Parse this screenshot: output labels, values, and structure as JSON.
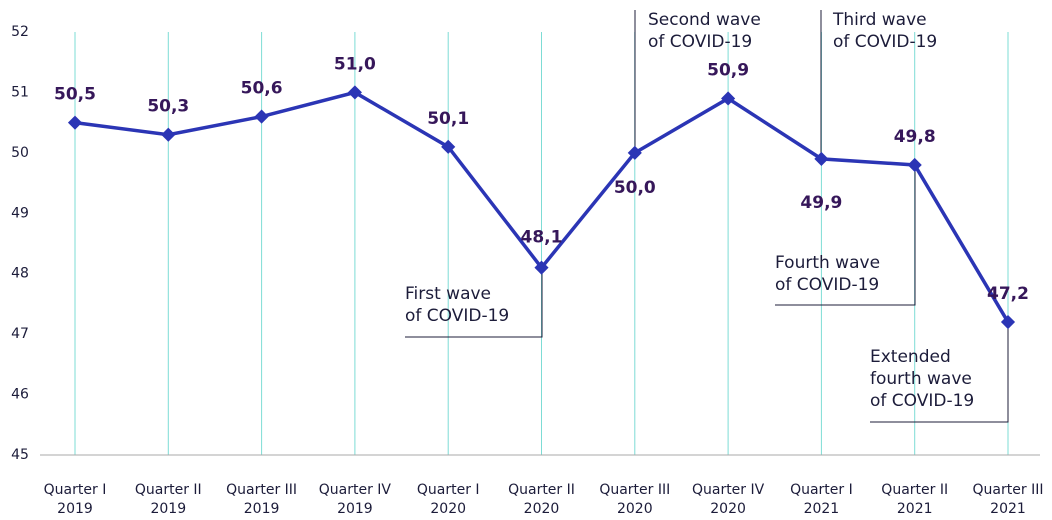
{
  "chart_data": {
    "type": "line",
    "categories": [
      "Quarter I\n2019",
      "Quarter II\n2019",
      "Quarter III\n2019",
      "Quarter IV\n2019",
      "Quarter I\n2020",
      "Quarter II\n2020",
      "Quarter III\n2020",
      "Quarter IV\n2020",
      "Quarter I\n2021",
      "Quarter II\n2021",
      "Quarter III\n2021"
    ],
    "series": [
      {
        "color": "#2b35b5",
        "values": [
          50.5,
          50.3,
          50.6,
          51.0,
          50.1,
          48.1,
          50.0,
          50.9,
          49.9,
          49.8,
          47.2
        ],
        "value_labels": [
          "50,5",
          "50,3",
          "50,6",
          "51,0",
          "50,1",
          "48,1",
          "50,0",
          "50,9",
          "49,9",
          "49,8",
          "47,2"
        ]
      }
    ],
    "ylim": [
      45,
      52
    ],
    "yticks": [
      45,
      46,
      47,
      48,
      49,
      50,
      51,
      52
    ],
    "annotations": [
      {
        "text": "First wave\nof COVID-19"
      },
      {
        "text": "Second wave\nof COVID-19"
      },
      {
        "text": "Third wave\nof COVID-19"
      },
      {
        "text": "Fourth wave\nof COVID-19"
      },
      {
        "text": "Extended\nfourth wave\nof COVID-19"
      }
    ]
  }
}
